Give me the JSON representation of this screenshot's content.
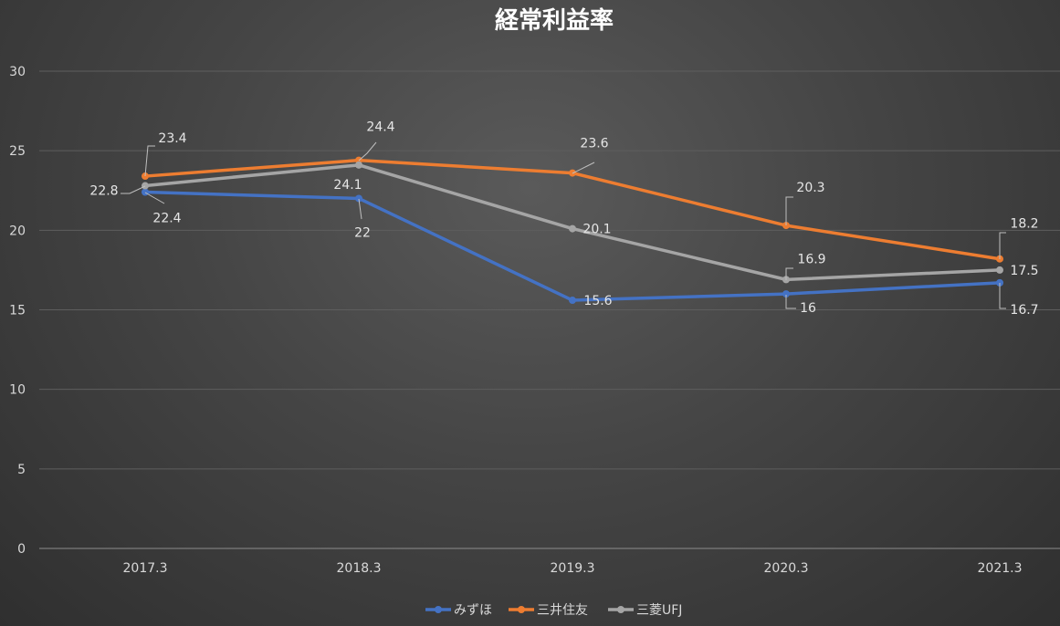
{
  "chart_data": {
    "type": "line",
    "title": "経常利益率",
    "categories": [
      "2017.3",
      "2018.3",
      "2019.3",
      "2020.3",
      "2021.3"
    ],
    "ylim": [
      0,
      30
    ],
    "yticks": [
      0,
      5,
      10,
      15,
      20,
      25,
      30
    ],
    "grid": true,
    "legend_position": "bottom",
    "series": [
      {
        "name": "みずほ",
        "color": "#4472c4",
        "values": [
          22.4,
          22,
          15.6,
          16,
          16.7
        ]
      },
      {
        "name": "三井住友",
        "color": "#ed7d31",
        "values": [
          23.4,
          24.4,
          23.6,
          20.3,
          18.2
        ]
      },
      {
        "name": "三菱UFJ",
        "color": "#a5a5a5",
        "values": [
          22.8,
          24.1,
          20.1,
          16.9,
          17.5
        ]
      }
    ]
  }
}
